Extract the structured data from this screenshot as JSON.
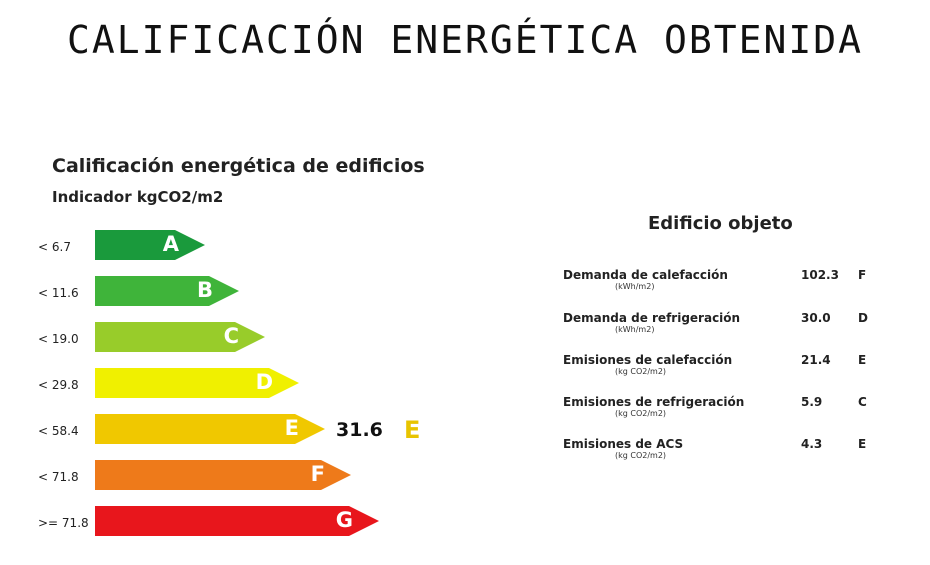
{
  "page_title": "CALIFICACIÓN ENERGÉTICA OBTENIDA",
  "scale": {
    "title": "Calificación energética de edificios",
    "indicator": "Indicador kgCO2/m2",
    "rows": [
      {
        "range": "< 6.7",
        "letter": "A",
        "color": "#1a9a3c"
      },
      {
        "range": "< 11.6",
        "letter": "B",
        "color": "#3fb43a"
      },
      {
        "range": "< 19.0",
        "letter": "C",
        "color": "#98cc2a"
      },
      {
        "range": "< 29.8",
        "letter": "D",
        "color": "#f0f000"
      },
      {
        "range": "< 58.4",
        "letter": "E",
        "color": "#f0c800"
      },
      {
        "range": "< 71.8",
        "letter": "F",
        "color": "#ee7a1a"
      },
      {
        "range": ">= 71.8",
        "letter": "G",
        "color": "#e8161c"
      }
    ],
    "result": {
      "value": "31.6",
      "letter": "E",
      "color": "#e8c400"
    }
  },
  "building": {
    "title": "Edificio objeto",
    "metrics": [
      {
        "label": "Demanda de calefacción",
        "unit": "(kWh/m2)",
        "value": "102.3",
        "grade": "F"
      },
      {
        "label": "Demanda de refrigeración",
        "unit": "(kWh/m2)",
        "value": "30.0",
        "grade": "D"
      },
      {
        "label": "Emisiones de calefacción",
        "unit": "(kg CO2/m2)",
        "value": "21.4",
        "grade": "E"
      },
      {
        "label": "Emisiones de refrigeración",
        "unit": "(kg CO2/m2)",
        "value": "5.9",
        "grade": "C"
      },
      {
        "label": "Emisiones de ACS",
        "unit": "(kg CO2/m2)",
        "value": "4.3",
        "grade": "E"
      }
    ]
  }
}
